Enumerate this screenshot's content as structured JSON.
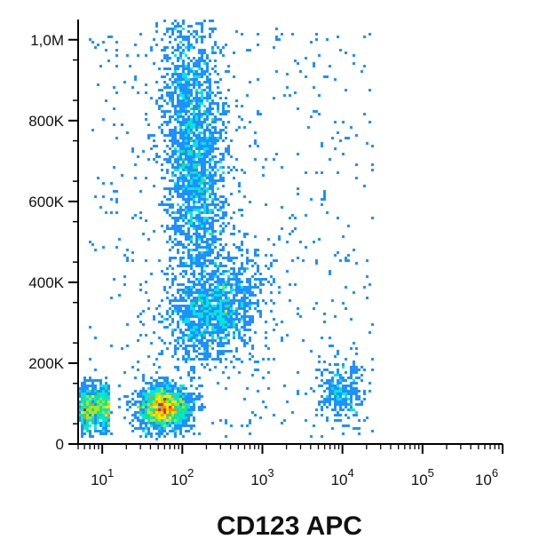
{
  "chart_data": {
    "type": "scatter",
    "subtype": "flow-cytometry density dot plot",
    "title": "",
    "xlabel": "CD123 APC",
    "ylabel": "",
    "x_scale": "log",
    "xlim": [
      5,
      1000000
    ],
    "ylim": [
      0,
      1050000
    ],
    "x_ticks": [
      {
        "value": 10,
        "base": "10",
        "exp": "1"
      },
      {
        "value": 100,
        "base": "10",
        "exp": "2"
      },
      {
        "value": 1000,
        "base": "10",
        "exp": "3"
      },
      {
        "value": 10000,
        "base": "10",
        "exp": "4"
      },
      {
        "value": 100000,
        "base": "10",
        "exp": "5"
      },
      {
        "value": 1000000,
        "base": "10",
        "exp": "6"
      }
    ],
    "y_ticks": [
      {
        "value": 0,
        "label": "0"
      },
      {
        "value": 200000,
        "label": "200K"
      },
      {
        "value": 400000,
        "label": "400K"
      },
      {
        "value": 600000,
        "label": "600K"
      },
      {
        "value": 800000,
        "label": "800K"
      },
      {
        "value": 1000000,
        "label": "1,0M"
      }
    ],
    "color_scale": [
      "#1f1fd0",
      "#1e90ff",
      "#00e5e5",
      "#19e08a",
      "#a8e61e",
      "#ffe600",
      "#ff8c00",
      "#ff1e00"
    ],
    "populations": [
      {
        "x_center": 60,
        "y_center": 90000,
        "n": 2600
      },
      {
        "x_center": 140,
        "y_center": 720000,
        "n": 2400
      },
      {
        "x_center": 250,
        "y_center": 330000,
        "n": 1300
      },
      {
        "x_center": 10000,
        "y_center": 130000,
        "n": 300
      }
    ],
    "grid": false,
    "legend": "none"
  }
}
